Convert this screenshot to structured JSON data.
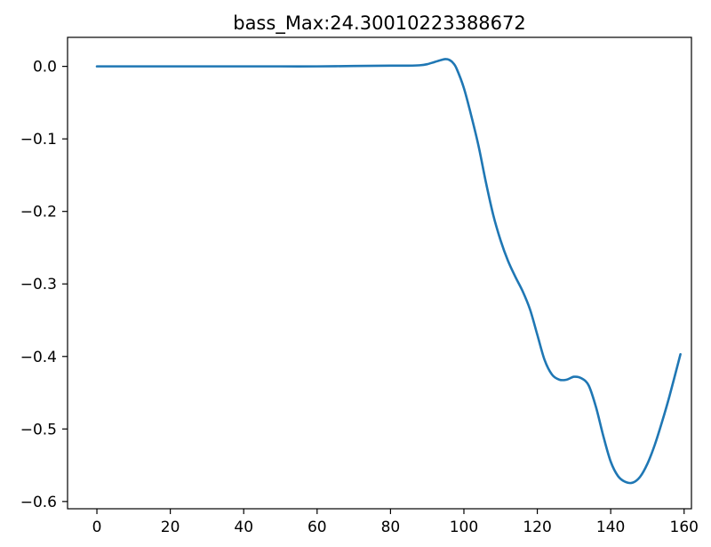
{
  "chart_data": {
    "type": "line",
    "title": "bass_Max:24.30010223388672",
    "xlabel": "",
    "ylabel": "",
    "xlim": [
      -8,
      162
    ],
    "ylim": [
      -0.61,
      0.04
    ],
    "xticks": [
      0,
      20,
      40,
      60,
      80,
      100,
      120,
      140,
      160
    ],
    "yticks": [
      0.0,
      -0.1,
      -0.2,
      -0.3,
      -0.4,
      -0.5,
      -0.6
    ],
    "ytick_labels": [
      "0.0",
      "−0.1",
      "−0.2",
      "−0.3",
      "−0.4",
      "−0.5",
      "−0.6"
    ],
    "grid": false,
    "series": [
      {
        "color": "#1f77b4",
        "x": [
          0,
          10,
          20,
          30,
          40,
          50,
          60,
          70,
          80,
          85,
          88,
          90,
          92,
          94,
          95,
          96,
          97,
          98,
          100,
          102,
          104,
          106,
          108,
          110,
          112,
          114,
          116,
          118,
          120,
          122,
          124,
          126,
          128,
          130,
          132,
          134,
          136,
          138,
          140,
          142,
          144,
          146,
          148,
          150,
          152,
          154,
          156,
          159
        ],
        "values": [
          0.0,
          0.0,
          0.0,
          0.0,
          0.0,
          0.0,
          0.0,
          0.0005,
          0.001,
          0.001,
          0.0015,
          0.003,
          0.006,
          0.009,
          0.01,
          0.009,
          0.005,
          -0.003,
          -0.03,
          -0.068,
          -0.11,
          -0.16,
          -0.205,
          -0.24,
          -0.268,
          -0.29,
          -0.31,
          -0.335,
          -0.37,
          -0.405,
          -0.425,
          -0.432,
          -0.432,
          -0.428,
          -0.43,
          -0.44,
          -0.47,
          -0.51,
          -0.545,
          -0.565,
          -0.573,
          -0.574,
          -0.566,
          -0.548,
          -0.522,
          -0.49,
          -0.455,
          -0.397
        ]
      }
    ]
  }
}
